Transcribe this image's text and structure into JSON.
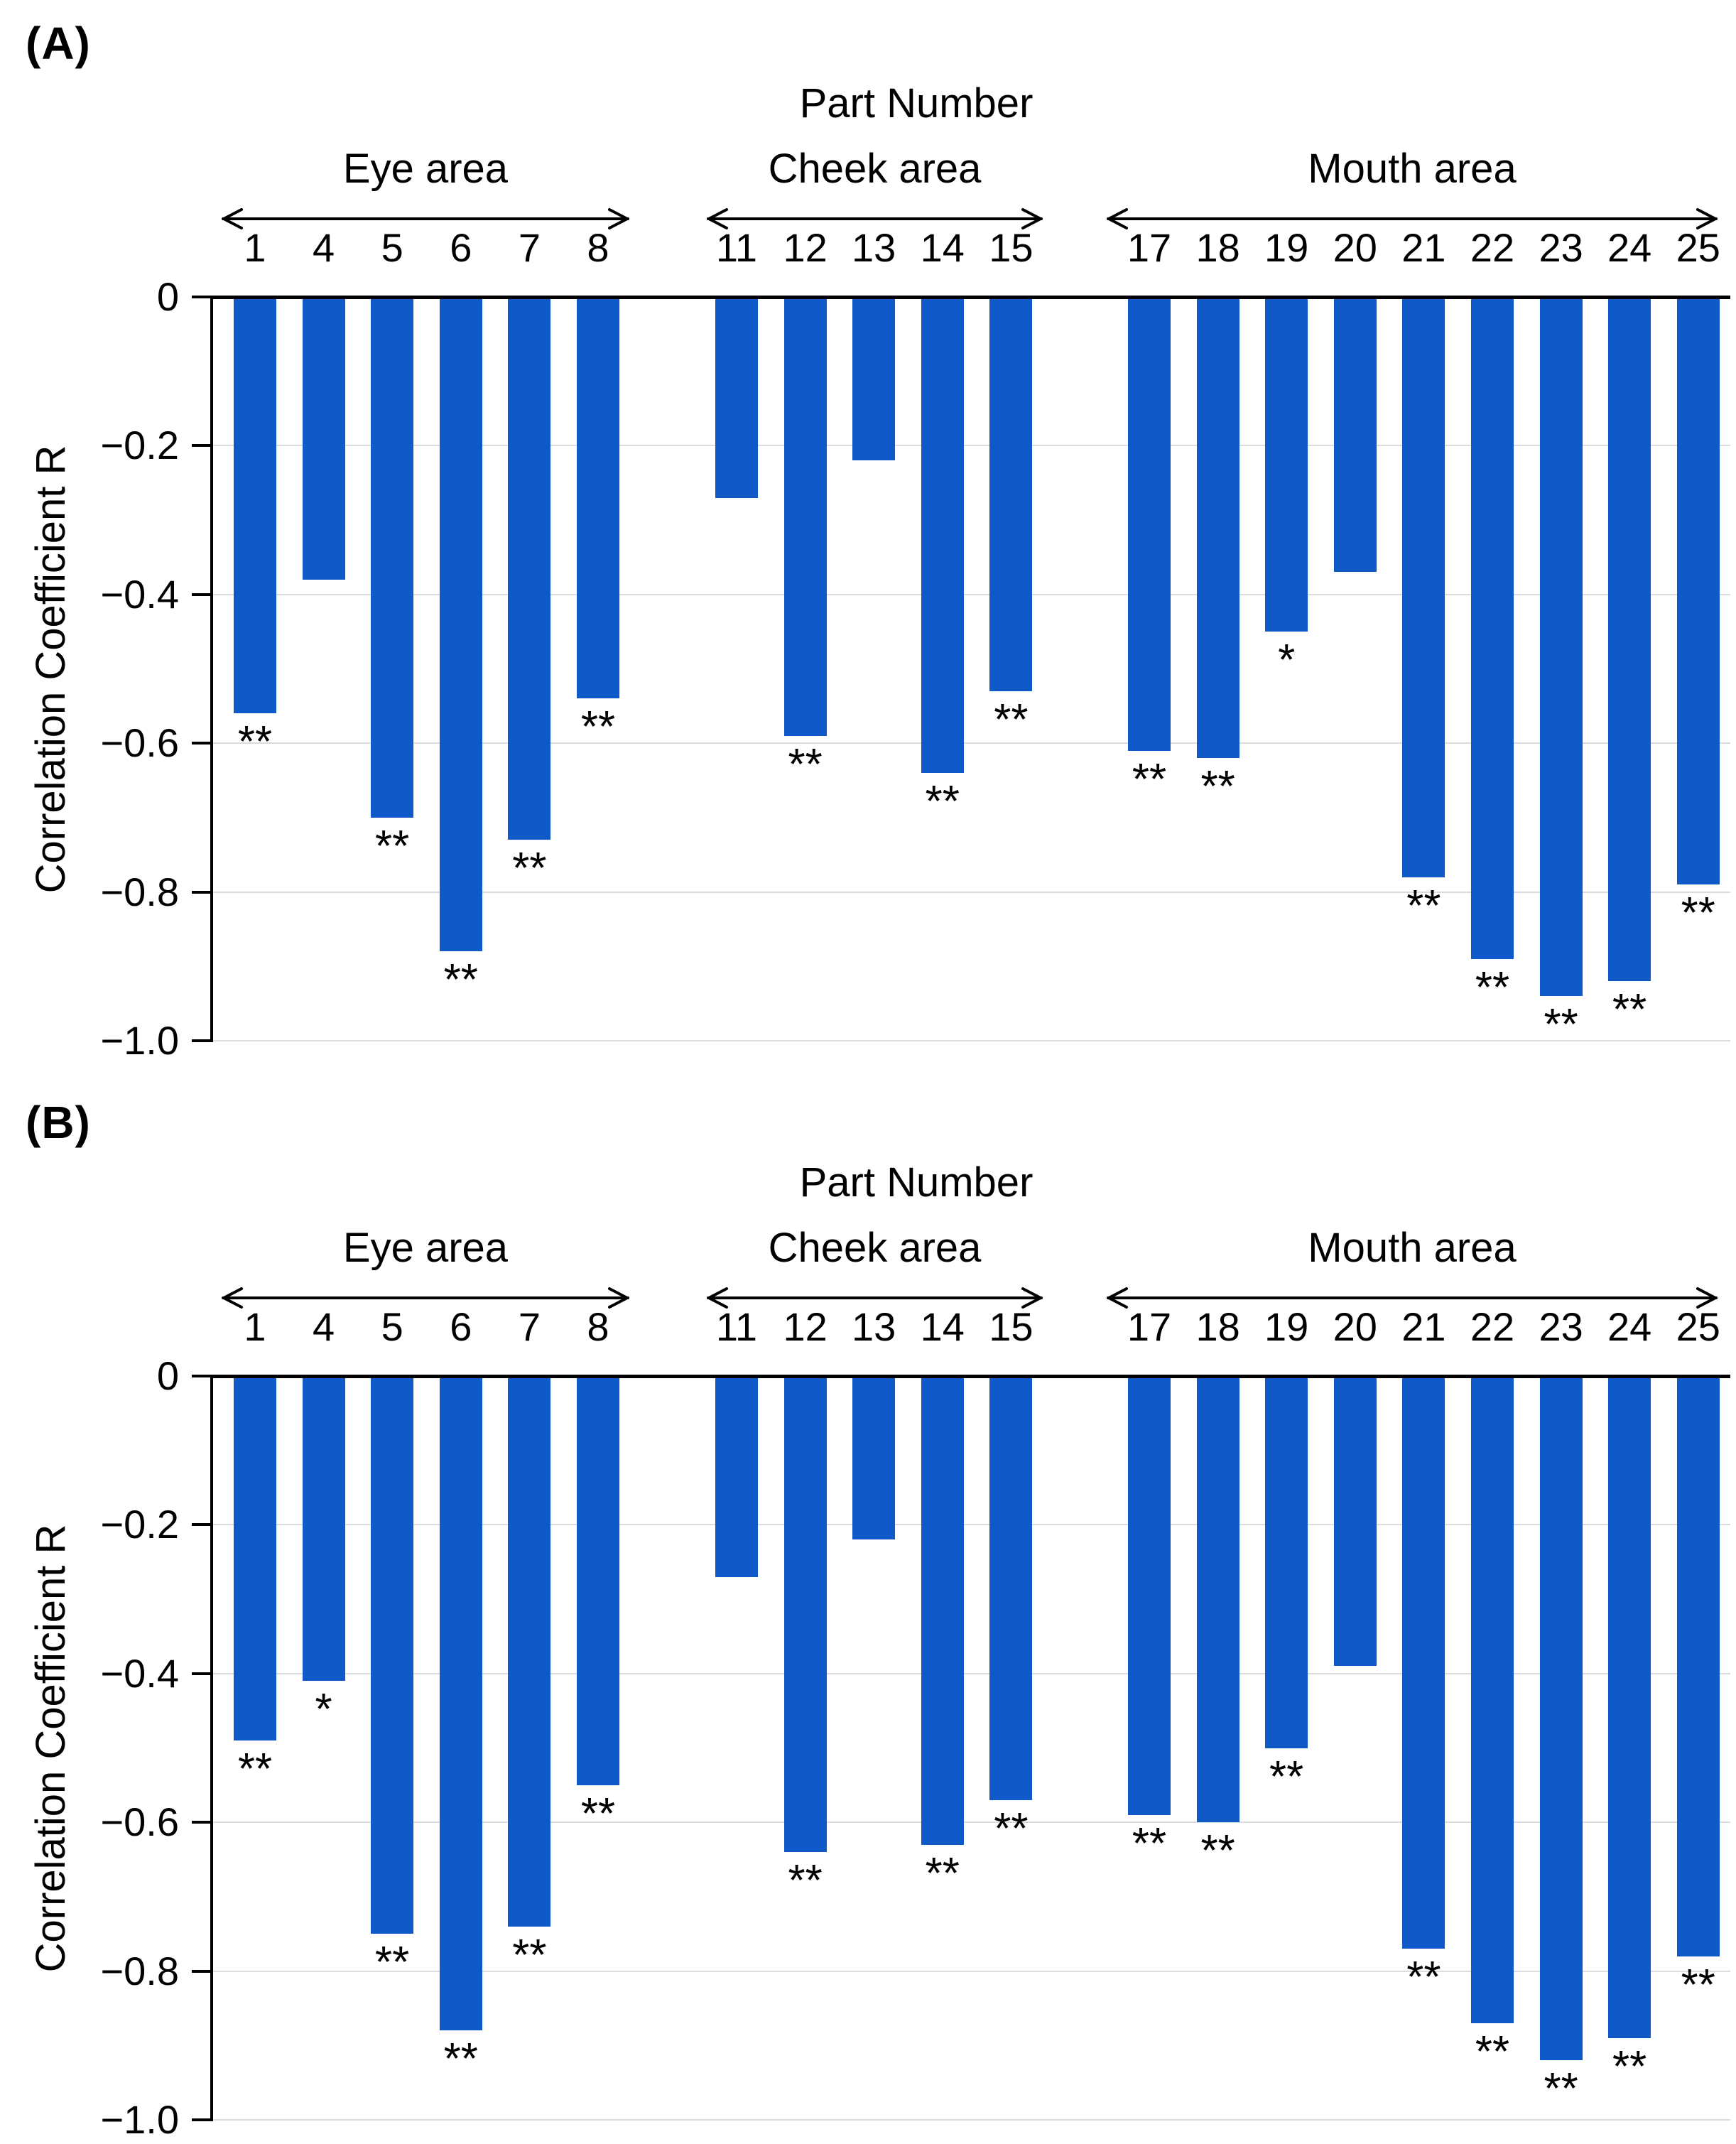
{
  "figure": {
    "background": "#ffffff",
    "text_color": "#000000",
    "grid_color": "#dcdcdc",
    "accent_color": "#1059c8"
  },
  "chart_data": [
    {
      "type": "bar",
      "panel": "(A)",
      "title": "Part Number",
      "ylabel": "Correlation Coefficient R",
      "ylim": [
        0,
        -1.0
      ],
      "grid": true,
      "legend": "none",
      "bar_color": "#1059c8",
      "y_ticks": [
        "0",
        "−0.2",
        "−0.4",
        "−0.6",
        "−0.8",
        "−1.0"
      ],
      "groups": [
        {
          "label": "Eye area",
          "categories": [
            "1",
            "4",
            "5",
            "6",
            "7",
            "8"
          ],
          "values": [
            -0.56,
            -0.38,
            -0.7,
            -0.88,
            -0.73,
            -0.54
          ],
          "sig": [
            "**",
            "",
            "**",
            "**",
            "**",
            "**"
          ]
        },
        {
          "label": "Cheek area",
          "categories": [
            "11",
            "12",
            "13",
            "14",
            "15"
          ],
          "values": [
            -0.27,
            -0.59,
            -0.22,
            -0.64,
            -0.53
          ],
          "sig": [
            "",
            "**",
            "",
            "**",
            "**"
          ]
        },
        {
          "label": "Mouth area",
          "categories": [
            "17",
            "18",
            "19",
            "20",
            "21",
            "22",
            "23",
            "24",
            "25"
          ],
          "values": [
            -0.61,
            -0.62,
            -0.45,
            -0.37,
            -0.78,
            -0.89,
            -0.94,
            -0.92,
            -0.79
          ],
          "sig": [
            "**",
            "**",
            "*",
            "",
            "**",
            "**",
            "**",
            "**",
            "**"
          ]
        }
      ]
    },
    {
      "type": "bar",
      "panel": "(B)",
      "title": "Part Number",
      "ylabel": "Correlation Coefficient R",
      "ylim": [
        0,
        -1.0
      ],
      "grid": true,
      "legend": "none",
      "bar_color": "#1059c8",
      "y_ticks": [
        "0",
        "−0.2",
        "−0.4",
        "−0.6",
        "−0.8",
        "−1.0"
      ],
      "groups": [
        {
          "label": "Eye area",
          "categories": [
            "1",
            "4",
            "5",
            "6",
            "7",
            "8"
          ],
          "values": [
            -0.49,
            -0.41,
            -0.75,
            -0.88,
            -0.74,
            -0.55
          ],
          "sig": [
            "**",
            "*",
            "**",
            "**",
            "**",
            "**"
          ]
        },
        {
          "label": "Cheek area",
          "categories": [
            "11",
            "12",
            "13",
            "14",
            "15"
          ],
          "values": [
            -0.27,
            -0.64,
            -0.22,
            -0.63,
            -0.57
          ],
          "sig": [
            "",
            "**",
            "",
            "**",
            "**"
          ]
        },
        {
          "label": "Mouth area",
          "categories": [
            "17",
            "18",
            "19",
            "20",
            "21",
            "22",
            "23",
            "24",
            "25"
          ],
          "values": [
            -0.59,
            -0.6,
            -0.5,
            -0.39,
            -0.77,
            -0.87,
            -0.92,
            -0.89,
            -0.78
          ],
          "sig": [
            "**",
            "**",
            "**",
            "",
            "**",
            "**",
            "**",
            "**",
            "**"
          ]
        }
      ]
    }
  ]
}
